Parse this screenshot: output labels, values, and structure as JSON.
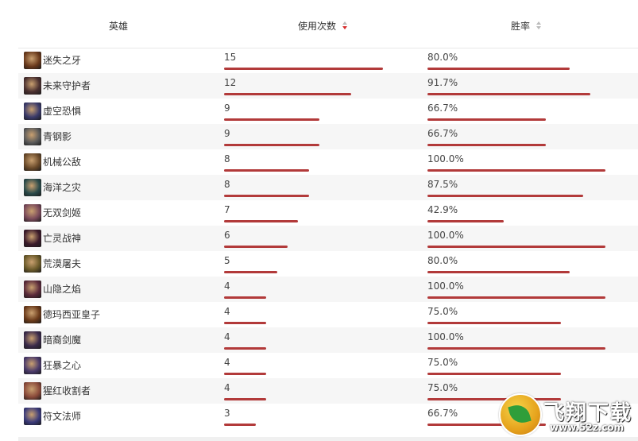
{
  "header": {
    "hero": "英雄",
    "uses": "使用次数",
    "win_rate": "胜率"
  },
  "rows": [
    {
      "name": "迷失之牙",
      "uses": "15",
      "win": "80.0%",
      "uses_ratio": 1.0,
      "win_ratio": 0.8,
      "color": "#6a3a1c"
    },
    {
      "name": "未来守护者",
      "uses": "12",
      "win": "91.7%",
      "uses_ratio": 0.8,
      "win_ratio": 0.917,
      "color": "#4a3030"
    },
    {
      "name": "虚空恐惧",
      "uses": "9",
      "win": "66.7%",
      "uses_ratio": 0.6,
      "win_ratio": 0.667,
      "color": "#3a3a6a"
    },
    {
      "name": "青钢影",
      "uses": "9",
      "win": "66.7%",
      "uses_ratio": 0.6,
      "win_ratio": 0.667,
      "color": "#5a5a5a"
    },
    {
      "name": "机械公敌",
      "uses": "8",
      "win": "100.0%",
      "uses_ratio": 0.533,
      "win_ratio": 1.0,
      "color": "#6a4a2a"
    },
    {
      "name": "海洋之灾",
      "uses": "8",
      "win": "87.5%",
      "uses_ratio": 0.533,
      "win_ratio": 0.875,
      "color": "#2a4a4a"
    },
    {
      "name": "无双剑姬",
      "uses": "7",
      "win": "42.9%",
      "uses_ratio": 0.467,
      "win_ratio": 0.429,
      "color": "#7a4a5a"
    },
    {
      "name": "亡灵战神",
      "uses": "6",
      "win": "100.0%",
      "uses_ratio": 0.4,
      "win_ratio": 1.0,
      "color": "#3a1a2a"
    },
    {
      "name": "荒漠屠夫",
      "uses": "5",
      "win": "80.0%",
      "uses_ratio": 0.333,
      "win_ratio": 0.8,
      "color": "#6a5a2a"
    },
    {
      "name": "山隐之焰",
      "uses": "4",
      "win": "100.0%",
      "uses_ratio": 0.267,
      "win_ratio": 1.0,
      "color": "#5a2a3a"
    },
    {
      "name": "德玛西亚皇子",
      "uses": "4",
      "win": "75.0%",
      "uses_ratio": 0.267,
      "win_ratio": 0.75,
      "color": "#6a3a1a"
    },
    {
      "name": "暗裔剑魔",
      "uses": "4",
      "win": "100.0%",
      "uses_ratio": 0.267,
      "win_ratio": 1.0,
      "color": "#3a2a4a"
    },
    {
      "name": "狂暴之心",
      "uses": "4",
      "win": "75.0%",
      "uses_ratio": 0.267,
      "win_ratio": 0.75,
      "color": "#4a3a6a"
    },
    {
      "name": "猩红收割者",
      "uses": "4",
      "win": "75.0%",
      "uses_ratio": 0.267,
      "win_ratio": 0.75,
      "color": "#8a4a3a"
    },
    {
      "name": "符文法师",
      "uses": "3",
      "win": "66.7%",
      "uses_ratio": 0.2,
      "win_ratio": 0.667,
      "color": "#3a3a7a"
    }
  ],
  "watermark": {
    "title": "飞翔下载",
    "url": "www.52z.com"
  },
  "colors": {
    "bar": "#b23a3a",
    "sort_active": "#d62b2b",
    "row_alt": "#f6f6f6"
  }
}
